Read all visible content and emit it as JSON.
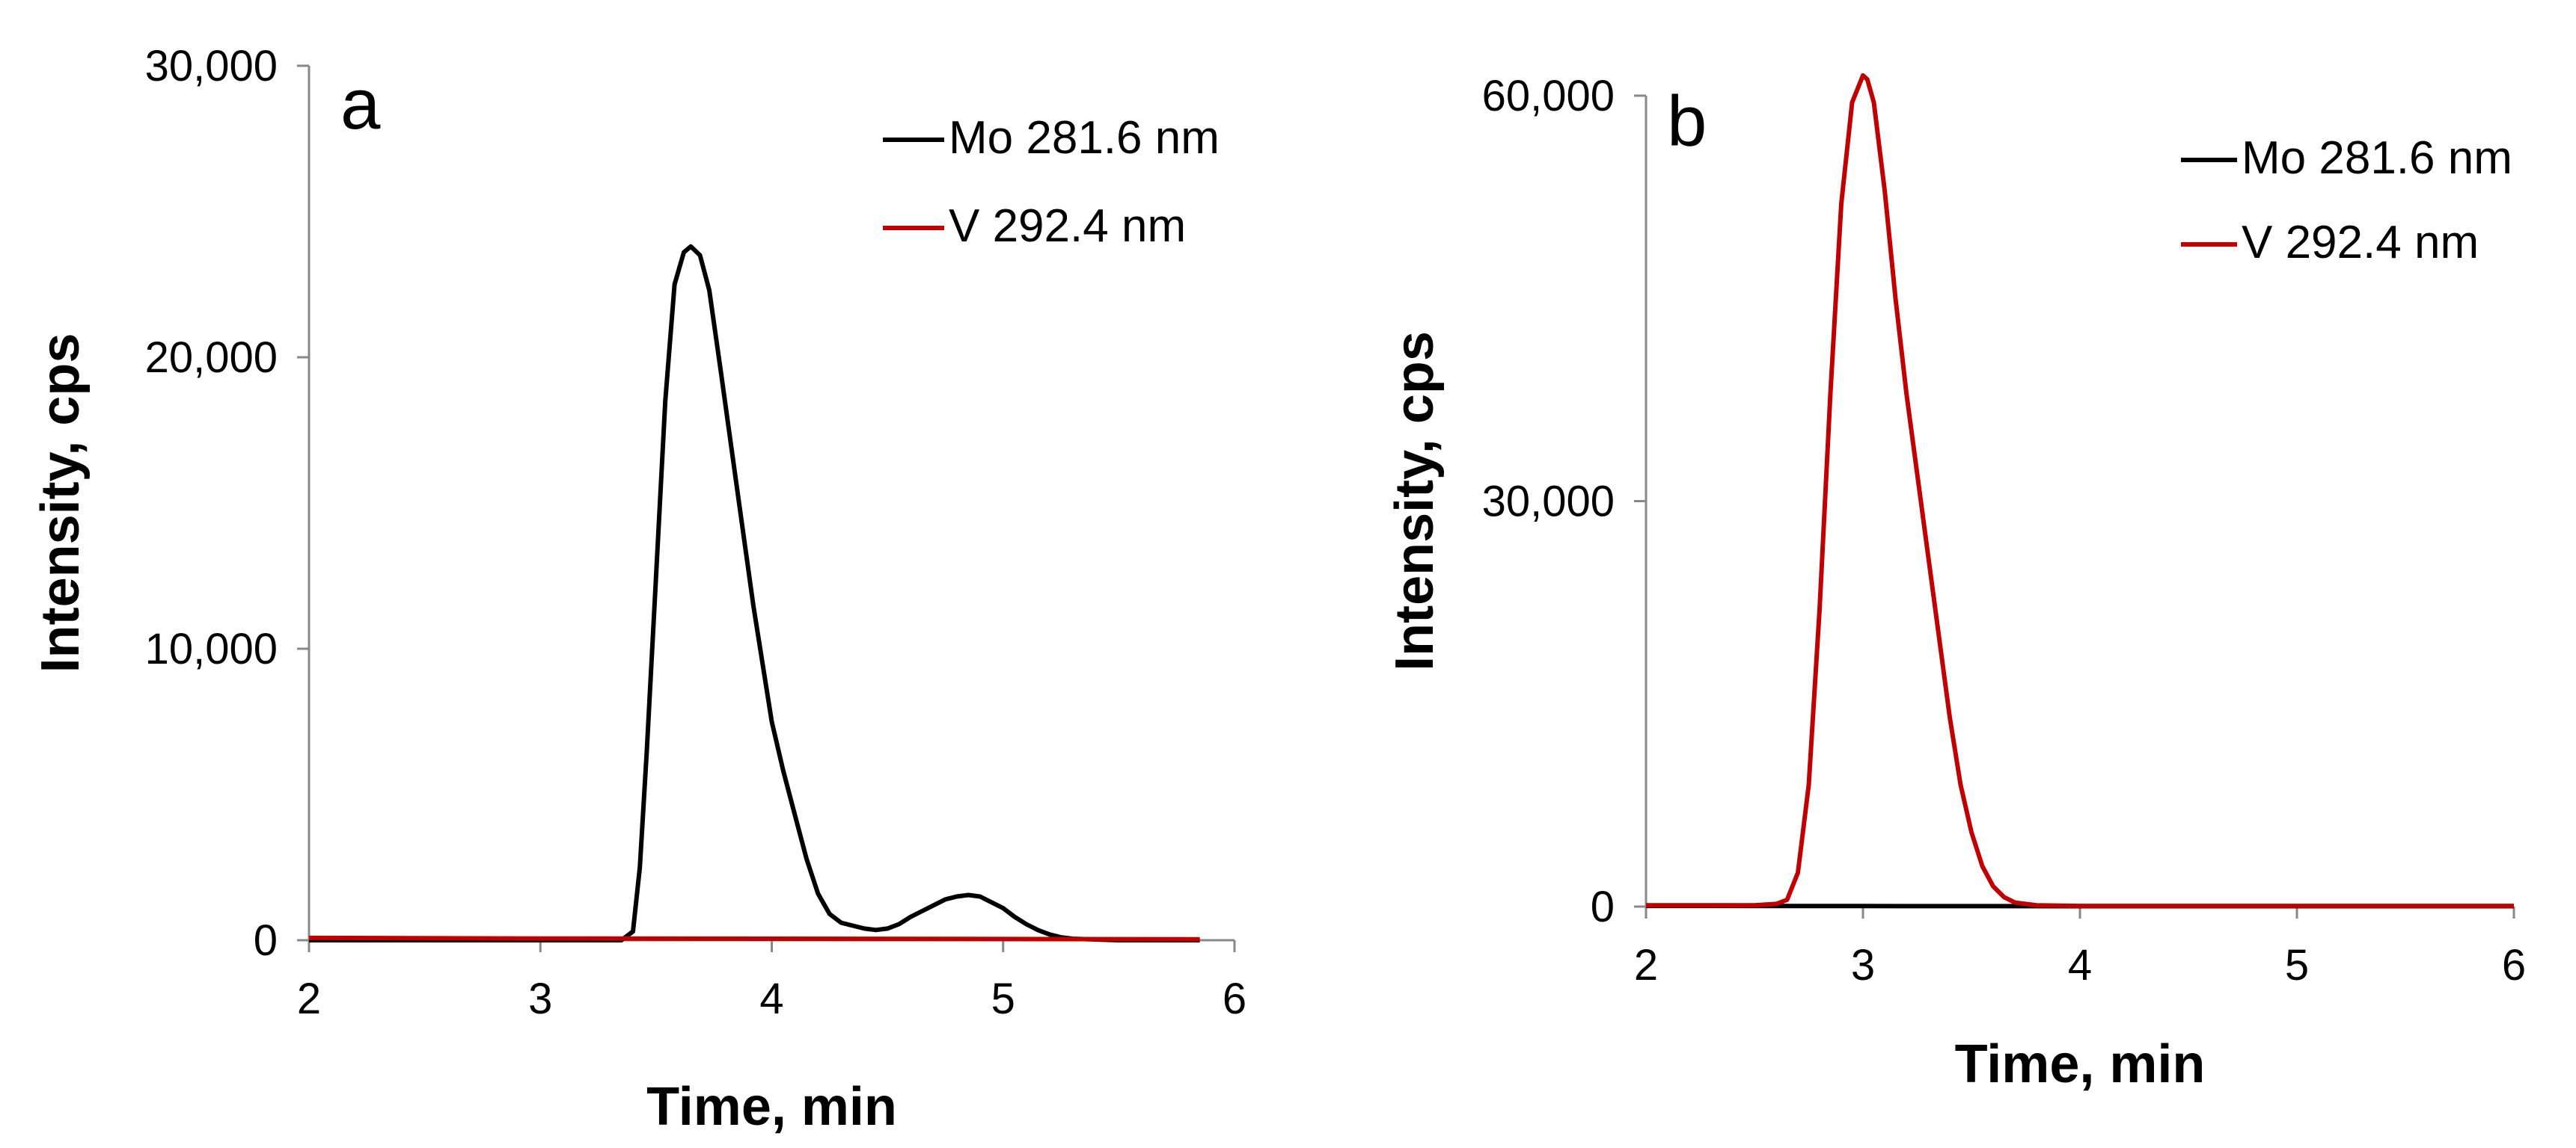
{
  "chart_data": [
    {
      "type": "line",
      "panel_label": "a",
      "xlabel": "Time, min",
      "ylabel": "Intensity, cps",
      "xlim": [
        2,
        6
      ],
      "ylim": [
        0,
        30000
      ],
      "xticks": [
        2,
        3,
        4,
        5,
        6
      ],
      "yticks": [
        0,
        10000,
        20000,
        30000
      ],
      "xtick_labels": [
        "2",
        "3",
        "4",
        "5",
        "6"
      ],
      "ytick_labels": [
        "0",
        "10,000",
        "20,000",
        "30,000"
      ],
      "grid": false,
      "legend_position": "top-right",
      "series": [
        {
          "name": "Mo 281.6 nm",
          "color": "#000000",
          "x": [
            2.0,
            2.5,
            3.0,
            3.2,
            3.35,
            3.4,
            3.43,
            3.46,
            3.5,
            3.54,
            3.58,
            3.62,
            3.65,
            3.69,
            3.73,
            3.78,
            3.85,
            3.92,
            4.0,
            4.05,
            4.1,
            4.15,
            4.2,
            4.25,
            4.3,
            4.35,
            4.4,
            4.45,
            4.5,
            4.55,
            4.6,
            4.65,
            4.7,
            4.75,
            4.8,
            4.85,
            4.9,
            4.95,
            5.0,
            5.05,
            5.1,
            5.15,
            5.2,
            5.25,
            5.3,
            5.5,
            5.7,
            5.85
          ],
          "y": [
            0,
            0,
            0,
            0,
            0,
            300,
            2500,
            6500,
            12500,
            18500,
            22500,
            23600,
            23800,
            23500,
            22300,
            19500,
            15500,
            11500,
            7500,
            5800,
            4300,
            2800,
            1600,
            900,
            600,
            500,
            400,
            350,
            400,
            550,
            800,
            1000,
            1200,
            1400,
            1500,
            1550,
            1500,
            1300,
            1100,
            800,
            550,
            350,
            200,
            100,
            50,
            0,
            0,
            0
          ]
        },
        {
          "name": "V 292.4 nm",
          "color": "#c00000",
          "x": [
            2.0,
            3.0,
            4.0,
            5.0,
            5.85
          ],
          "y": [
            80,
            60,
            50,
            40,
            30
          ]
        }
      ]
    },
    {
      "type": "line",
      "panel_label": "b",
      "xlabel": "Time, min",
      "ylabel": "Intensity, cps",
      "xlim": [
        2,
        6
      ],
      "ylim": [
        0,
        60000
      ],
      "xticks": [
        2,
        3,
        4,
        5,
        6
      ],
      "yticks": [
        0,
        30000,
        60000
      ],
      "xtick_labels": [
        "2",
        "3",
        "4",
        "5",
        "6"
      ],
      "ytick_labels": [
        "0",
        "30,000",
        "60,000"
      ],
      "grid": false,
      "legend_position": "top-right",
      "series": [
        {
          "name": "Mo 281.6 nm",
          "color": "#000000",
          "x": [
            2.0,
            3.0,
            4.0,
            5.0,
            6.0
          ],
          "y": [
            50,
            40,
            30,
            30,
            30
          ]
        },
        {
          "name": "V 292.4 nm",
          "color": "#c00000",
          "x": [
            2.0,
            2.5,
            2.6,
            2.65,
            2.7,
            2.75,
            2.8,
            2.85,
            2.9,
            2.95,
            3.0,
            3.02,
            3.05,
            3.1,
            3.15,
            3.2,
            3.25,
            3.3,
            3.35,
            3.4,
            3.45,
            3.5,
            3.55,
            3.6,
            3.65,
            3.7,
            3.8,
            4.0,
            5.0,
            6.0
          ],
          "y": [
            100,
            100,
            200,
            500,
            2500,
            9000,
            22000,
            38000,
            52000,
            59500,
            61500,
            61200,
            59500,
            53000,
            45000,
            38000,
            32000,
            26000,
            20000,
            14000,
            9000,
            5500,
            3000,
            1500,
            700,
            300,
            100,
            50,
            50,
            50
          ]
        }
      ]
    }
  ]
}
